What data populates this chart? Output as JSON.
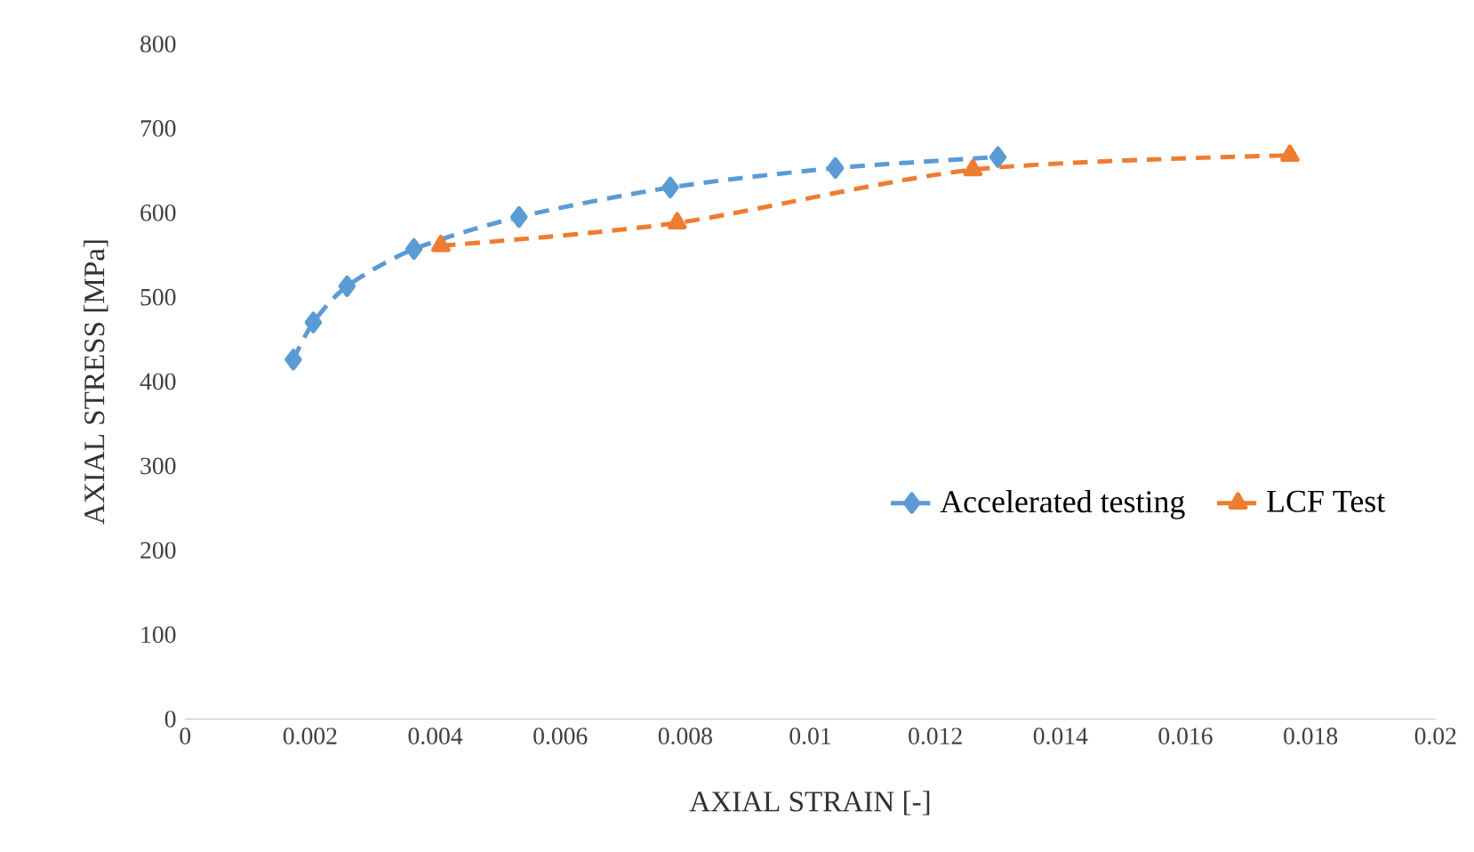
{
  "chart_data": {
    "type": "line",
    "xlabel": "AXIAL STRAIN [-]",
    "ylabel": "AXIAL STRESS [MPa]",
    "xlim": [
      0,
      0.02
    ],
    "xticks": [
      0,
      0.002,
      0.004,
      0.006,
      0.008,
      0.01,
      0.012,
      0.014,
      0.016,
      0.018,
      0.02
    ],
    "ylim": [
      0,
      800
    ],
    "yticks": [
      0,
      100,
      200,
      300,
      400,
      500,
      600,
      700,
      800
    ],
    "grid": false,
    "legend": "right",
    "line_style": "dashed",
    "series": [
      {
        "name": "Accelerated testing",
        "color": "#5b9bd5",
        "marker": "diamond",
        "x": [
          0.00173,
          0.00205,
          0.00259,
          0.00366,
          0.00534,
          0.00776,
          0.0104,
          0.013
        ],
        "values": [
          426,
          470,
          513,
          557,
          595,
          630,
          653,
          666
        ]
      },
      {
        "name": "LCF Test",
        "color": "#ed7d31",
        "marker": "triangle",
        "x": [
          0.00409,
          0.00787,
          0.0126,
          0.01767
        ],
        "values": [
          561,
          588,
          651,
          668
        ]
      }
    ]
  }
}
